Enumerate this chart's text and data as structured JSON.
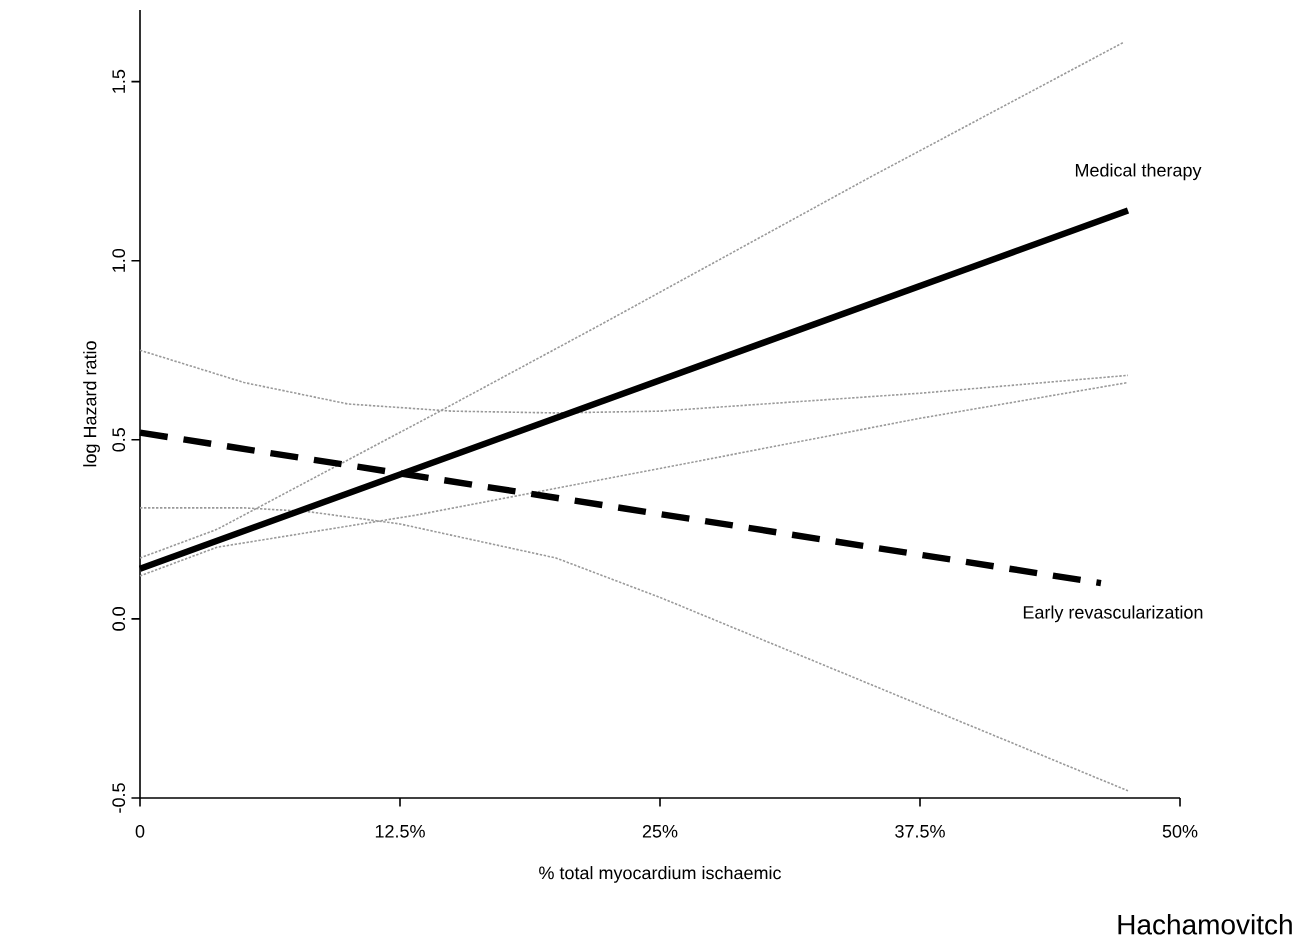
{
  "chart_data": {
    "type": "line",
    "xlabel": "% total myocardium ischaemic",
    "ylabel": "log Hazard ratio",
    "xlim": [
      0,
      50
    ],
    "ylim": [
      -0.5,
      1.7
    ],
    "xticks": [
      0,
      {
        "value": 12.5,
        "label": "12.5%"
      },
      {
        "value": 25,
        "label": "25%"
      },
      {
        "value": 37.5,
        "label": "37.5%"
      },
      {
        "value": 50,
        "label": "50%"
      }
    ],
    "yticks": [
      {
        "value": -0.5,
        "label": "-0.5"
      },
      {
        "value": 0,
        "label": "0.0"
      },
      {
        "value": 0.5,
        "label": "0.5"
      },
      {
        "value": 1,
        "label": "1.0"
      },
      {
        "value": 1.5,
        "label": "1.5"
      }
    ],
    "marker": "none",
    "series": [
      {
        "color": "#9a9a9a",
        "line_style": "dotted",
        "x": [
          0,
          3.7,
          14.1,
          22.1,
          35,
          47.3
        ],
        "values": [
          0.17,
          0.25,
          0.57,
          0.82,
          1.23,
          1.61
        ]
      },
      {
        "color": "#9a9a9a",
        "line_style": "dotted",
        "x": [
          0,
          3.7,
          13.3,
          25,
          37.5,
          47.5
        ],
        "values": [
          0.12,
          0.2,
          0.29,
          0.42,
          0.56,
          0.66
        ]
      },
      {
        "color": "#9a9a9a",
        "line_style": "dotted",
        "x": [
          0,
          5,
          10,
          15,
          20,
          25,
          30,
          37.5,
          47.5
        ],
        "values": [
          0.75,
          0.66,
          0.6,
          0.58,
          0.575,
          0.58,
          0.6,
          0.63,
          0.68
        ]
      },
      {
        "color": "#9a9a9a",
        "line_style": "dotted",
        "x": [
          0,
          5,
          8,
          12.5,
          20,
          25,
          47.5
        ],
        "values": [
          0.31,
          0.31,
          0.3,
          0.265,
          0.17,
          0.06,
          -0.48
        ]
      },
      {
        "name": "Medical therapy",
        "color": "#000000",
        "line_style": "solid",
        "x": [
          0,
          47.5
        ],
        "values": [
          0.14,
          1.14
        ]
      },
      {
        "name": "Early revascularization",
        "color": "#000000",
        "line_style": "dashed",
        "x": [
          0,
          46.2
        ],
        "values": [
          0.52,
          0.1
        ]
      }
    ],
    "annotations": [
      "Hachamovitch"
    ]
  }
}
